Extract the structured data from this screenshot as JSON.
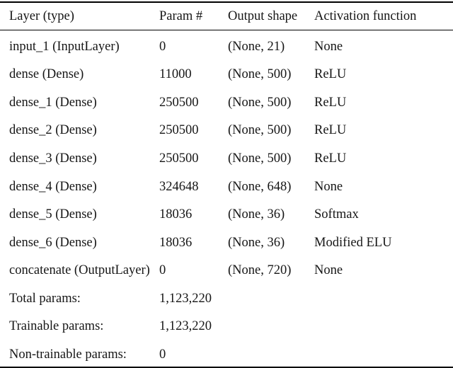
{
  "colors": {
    "background": "#ffffff",
    "text": "#161616",
    "rule": "#000000"
  },
  "table": {
    "columns": [
      "Layer (type)",
      "Param #",
      "Output shape",
      "Activation function"
    ],
    "rows": [
      [
        "input_1 (InputLayer)",
        "0",
        "(None, 21)",
        "None"
      ],
      [
        "dense (Dense)",
        "11000",
        "(None, 500)",
        "ReLU"
      ],
      [
        "dense_1 (Dense)",
        "250500",
        "(None, 500)",
        "ReLU"
      ],
      [
        "dense_2 (Dense)",
        "250500",
        "(None, 500)",
        "ReLU"
      ],
      [
        "dense_3 (Dense)",
        "250500",
        "(None, 500)",
        "ReLU"
      ],
      [
        "dense_4 (Dense)",
        "324648",
        "(None, 648)",
        "None"
      ],
      [
        "dense_5 (Dense)",
        "18036",
        "(None, 36)",
        "Softmax"
      ],
      [
        "dense_6 (Dense)",
        "18036",
        "(None, 36)",
        "Modified ELU"
      ],
      [
        "concatenate (OutputLayer)",
        "0",
        "(None, 720)",
        "None"
      ]
    ],
    "summary_rows": [
      [
        "Total params:",
        "1,123,220"
      ],
      [
        "Trainable params:",
        "1,123,220"
      ],
      [
        "Non-trainable params:",
        "0"
      ]
    ]
  }
}
